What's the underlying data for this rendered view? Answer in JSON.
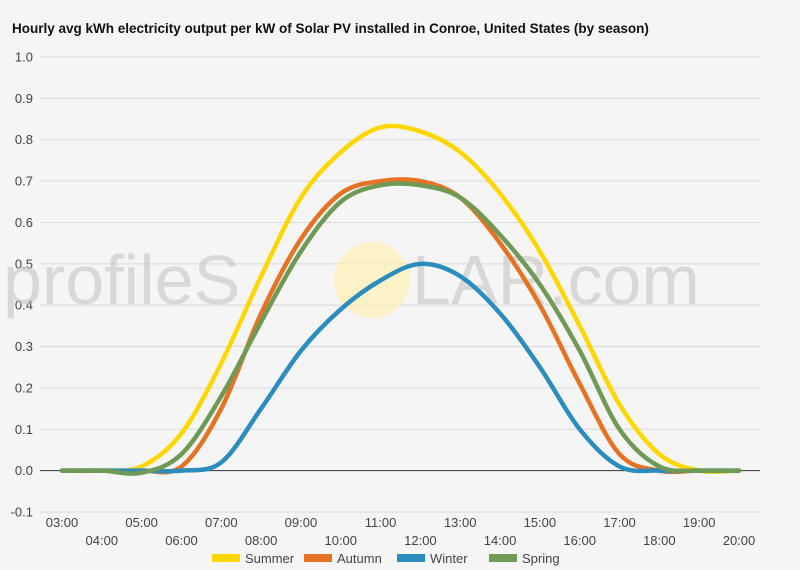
{
  "chart_data": {
    "type": "line",
    "title": "Hourly avg kWh electricity output per kW of Solar PV installed in Conroe, United States (by season)",
    "xlabel": "",
    "ylabel": "",
    "x": [
      "03:00",
      "04:00",
      "05:00",
      "06:00",
      "07:00",
      "08:00",
      "09:00",
      "10:00",
      "11:00",
      "12:00",
      "13:00",
      "14:00",
      "15:00",
      "16:00",
      "17:00",
      "18:00",
      "19:00",
      "20:00"
    ],
    "ylim": [
      -0.1,
      1.0
    ],
    "yticks": [
      "-0.1",
      "0.0",
      "0.1",
      "0.2",
      "0.3",
      "0.4",
      "0.5",
      "0.6",
      "0.7",
      "0.8",
      "0.9",
      "1.0"
    ],
    "grid": true,
    "legend_position": "bottom",
    "series": [
      {
        "name": "Summer",
        "color": "#FFD700",
        "values": [
          0.0,
          0.0,
          0.01,
          0.09,
          0.26,
          0.47,
          0.66,
          0.77,
          0.83,
          0.82,
          0.77,
          0.67,
          0.53,
          0.35,
          0.16,
          0.04,
          0.0,
          0.0
        ]
      },
      {
        "name": "Autumn",
        "color": "#E67324",
        "values": [
          0.0,
          0.0,
          0.0,
          0.01,
          0.15,
          0.38,
          0.56,
          0.67,
          0.7,
          0.7,
          0.66,
          0.55,
          0.4,
          0.21,
          0.04,
          0.0,
          0.0,
          0.0
        ]
      },
      {
        "name": "Winter",
        "color": "#2B8CBE",
        "values": [
          0.0,
          0.0,
          0.0,
          0.0,
          0.02,
          0.15,
          0.29,
          0.39,
          0.46,
          0.5,
          0.47,
          0.38,
          0.25,
          0.1,
          0.01,
          0.0,
          0.0,
          0.0
        ]
      },
      {
        "name": "Spring",
        "color": "#6E9A55",
        "values": [
          0.0,
          0.0,
          -0.005,
          0.04,
          0.18,
          0.36,
          0.53,
          0.65,
          0.69,
          0.69,
          0.66,
          0.57,
          0.45,
          0.29,
          0.1,
          0.01,
          0.0,
          0.0
        ]
      }
    ]
  },
  "watermark": {
    "left": "profileS",
    "right": "LAR.com",
    "sun_color": "#FFF0A8"
  }
}
